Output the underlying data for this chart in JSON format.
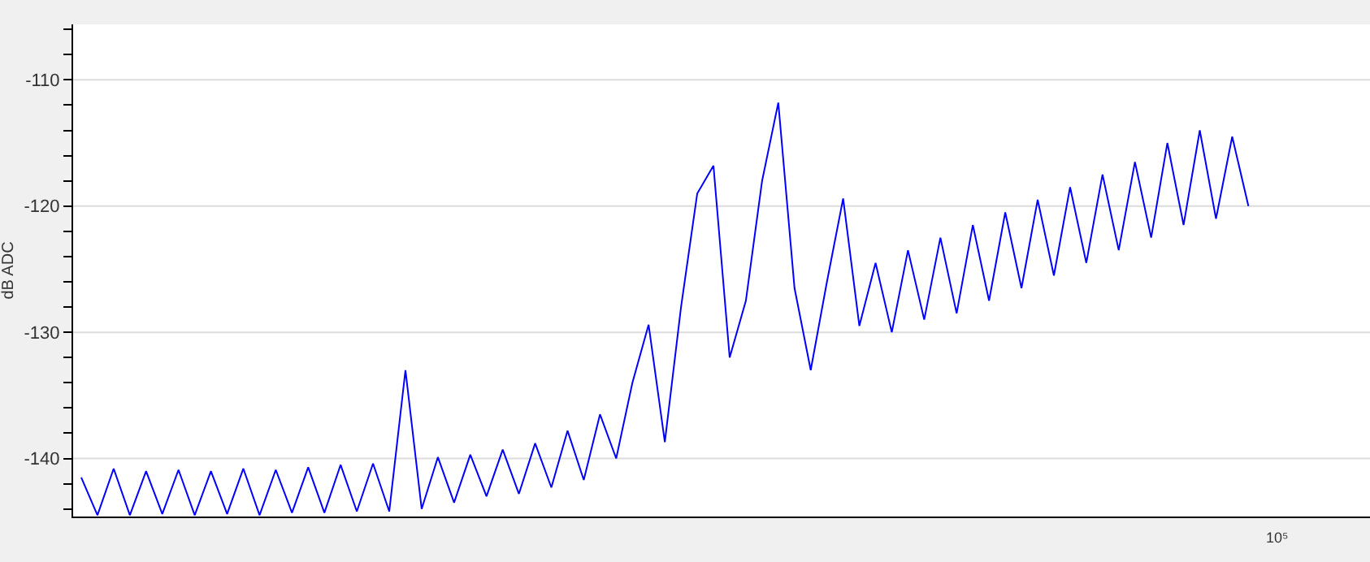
{
  "chart_data": {
    "type": "line",
    "ylabel": "dB ADC",
    "annotations": [
      "10⁵"
    ],
    "tick_labels": "y",
    "categories": [
      null,
      null,
      null,
      null,
      null,
      null,
      null,
      null,
      null,
      null,
      null,
      null,
      null,
      null,
      null,
      null,
      null,
      null,
      null,
      null,
      null,
      null,
      null,
      null,
      null,
      null,
      null,
      null,
      null,
      null,
      null,
      null,
      null,
      null,
      null,
      null,
      null,
      null,
      null,
      null,
      null,
      null,
      null,
      null,
      null,
      null,
      null,
      null,
      null,
      null,
      null,
      null,
      null,
      null,
      null,
      null,
      null,
      null,
      null,
      null,
      null,
      null,
      null,
      null,
      null,
      null,
      null,
      null,
      null,
      null,
      null,
      null,
      null,
      null,
      null,
      null,
      null,
      null,
      null,
      null
    ],
    "ylim": [
      -144.6,
      -105.6
    ],
    "yticks": [
      {
        "value": -106,
        "label": null
      },
      {
        "value": -108,
        "label": null
      },
      {
        "value": -110,
        "label": "-110"
      },
      {
        "value": -112,
        "label": null
      },
      {
        "value": -114,
        "label": null
      },
      {
        "value": -116,
        "label": null
      },
      {
        "value": -118,
        "label": null
      },
      {
        "value": -120,
        "label": "-120"
      },
      {
        "value": -122,
        "label": null
      },
      {
        "value": -124,
        "label": null
      },
      {
        "value": -126,
        "label": null
      },
      {
        "value": -128,
        "label": null
      },
      {
        "value": -130,
        "label": "-130"
      },
      {
        "value": -132,
        "label": null
      },
      {
        "value": -134,
        "label": null
      },
      {
        "value": -136,
        "label": null
      },
      {
        "value": -138,
        "label": null
      },
      {
        "value": -140,
        "label": "-140"
      },
      {
        "value": -142,
        "label": null
      },
      {
        "value": -144,
        "label": null
      }
    ],
    "grid": "y",
    "marker": "none",
    "line_style": "solid",
    "series": [
      {
        "color": "#0000ff",
        "values": [
          -141.5,
          -144.5,
          -140.8,
          -144.5,
          -141,
          -144.4,
          -140.9,
          -144.5,
          -141,
          -144.4,
          -140.8,
          -144.5,
          -140.9,
          -144.3,
          -140.7,
          -144.3,
          -140.5,
          -144.2,
          -140.4,
          -144.2,
          -133,
          -144,
          -139.9,
          -143.5,
          -139.7,
          -143,
          -139.3,
          -142.8,
          -138.8,
          -142.3,
          -137.8,
          -141.7,
          -136.5,
          -140,
          -134,
          -129.4,
          -138.7,
          -128,
          -119,
          -116.8,
          -132,
          -127.5,
          -118,
          -111.8,
          -126.5,
          -133,
          -126,
          -119.4,
          -129.5,
          -124.5,
          -130,
          -123.5,
          -129,
          -122.5,
          -128.5,
          -121.5,
          -127.5,
          -120.5,
          -126.5,
          -119.5,
          -125.5,
          -118.5,
          -124.5,
          -117.5,
          -123.5,
          -116.5,
          -122.5,
          -115,
          -121.5,
          -114,
          -121,
          -114.5,
          -120,
          null,
          null,
          null,
          null,
          null,
          null,
          null
        ]
      }
    ]
  }
}
